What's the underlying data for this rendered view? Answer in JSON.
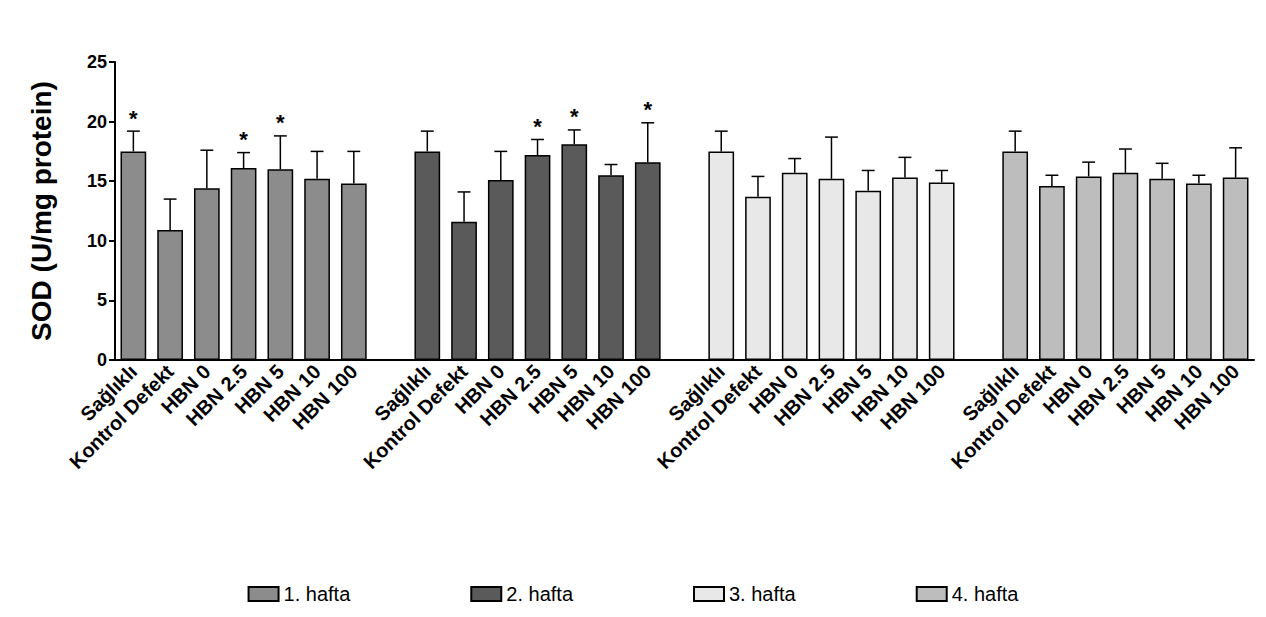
{
  "chart_data": {
    "type": "bar",
    "y_label": "SOD (U/mg protein)",
    "ylim": [
      0,
      25
    ],
    "yticks": [
      0,
      5,
      10,
      15,
      20,
      25
    ],
    "grid": false,
    "legend": "bottom",
    "categories": [
      "Sağlıklı",
      "Kontrol Defekt",
      "HBN 0",
      "HBN 2.5",
      "HBN 5",
      "HBN 10",
      "HBN 100",
      null,
      "Sağlıklı",
      "Kontrol Defekt",
      "HBN 0",
      "HBN 2.5",
      "HBN 5",
      "HBN 10",
      "HBN 100",
      null,
      "Sağlıklı",
      "Kontrol Defekt",
      "HBN 0",
      "HBN 2.5",
      "HBN 5",
      "HBN 10",
      "HBN 100",
      null,
      "Sağlıklı",
      "Kontrol Defekt",
      "HBN 0",
      "HBN 2.5",
      "HBN 5",
      "HBN 10",
      "HBN 100"
    ],
    "series": [
      {
        "name": "1. hafta",
        "color": "#8c8c8c",
        "values": [
          17.5,
          10.9,
          14.4,
          16.1,
          16.0,
          15.2,
          14.8,
          null,
          null,
          null,
          null,
          null,
          null,
          null,
          null,
          null,
          null,
          null,
          null,
          null,
          null,
          null,
          null,
          null,
          null,
          null,
          null,
          null,
          null,
          null,
          null
        ],
        "errors": [
          1.7,
          2.6,
          3.2,
          1.3,
          2.8,
          2.3,
          2.7,
          null,
          null,
          null,
          null,
          null,
          null,
          null,
          null,
          null,
          null,
          null,
          null,
          null,
          null,
          null,
          null,
          null,
          null,
          null,
          null,
          null,
          null,
          null,
          null
        ],
        "annotations": [
          "*",
          null,
          null,
          "*",
          "*",
          null,
          null,
          null,
          null,
          null,
          null,
          null,
          null,
          null,
          null,
          null,
          null,
          null,
          null,
          null,
          null,
          null,
          null,
          null,
          null,
          null,
          null,
          null,
          null,
          null,
          null
        ]
      },
      {
        "name": "2. hafta",
        "color": "#5a5a5a",
        "values": [
          null,
          null,
          null,
          null,
          null,
          null,
          null,
          null,
          17.5,
          11.6,
          15.1,
          17.2,
          18.1,
          15.5,
          16.6,
          null,
          null,
          null,
          null,
          null,
          null,
          null,
          null,
          null,
          null,
          null,
          null,
          null,
          null,
          null,
          null
        ],
        "errors": [
          null,
          null,
          null,
          null,
          null,
          null,
          null,
          null,
          1.7,
          2.5,
          2.4,
          1.3,
          1.2,
          0.9,
          3.3,
          null,
          null,
          null,
          null,
          null,
          null,
          null,
          null,
          null,
          null,
          null,
          null,
          null,
          null,
          null,
          null
        ],
        "annotations": [
          null,
          null,
          null,
          null,
          null,
          null,
          null,
          null,
          null,
          null,
          null,
          "*",
          "*",
          null,
          "*",
          null,
          null,
          null,
          null,
          null,
          null,
          null,
          null,
          null,
          null,
          null,
          null,
          null,
          null,
          null,
          null
        ]
      },
      {
        "name": "3. hafta",
        "color": "#e8e8e8",
        "values": [
          null,
          null,
          null,
          null,
          null,
          null,
          null,
          null,
          null,
          null,
          null,
          null,
          null,
          null,
          null,
          null,
          17.5,
          13.7,
          15.7,
          15.2,
          14.2,
          15.3,
          14.9,
          null,
          null,
          null,
          null,
          null,
          null,
          null,
          null
        ],
        "errors": [
          null,
          null,
          null,
          null,
          null,
          null,
          null,
          null,
          null,
          null,
          null,
          null,
          null,
          null,
          null,
          null,
          1.7,
          1.7,
          1.2,
          3.5,
          1.7,
          1.7,
          1.0,
          null,
          null,
          null,
          null,
          null,
          null,
          null,
          null
        ]
      },
      {
        "name": "4. hafta",
        "color": "#bdbdbd",
        "values": [
          null,
          null,
          null,
          null,
          null,
          null,
          null,
          null,
          null,
          null,
          null,
          null,
          null,
          null,
          null,
          null,
          null,
          null,
          null,
          null,
          null,
          null,
          null,
          null,
          17.5,
          14.6,
          15.4,
          15.7,
          15.2,
          14.8,
          15.3
        ],
        "errors": [
          null,
          null,
          null,
          null,
          null,
          null,
          null,
          null,
          null,
          null,
          null,
          null,
          null,
          null,
          null,
          null,
          null,
          null,
          null,
          null,
          null,
          null,
          null,
          null,
          1.7,
          0.9,
          1.2,
          2.0,
          1.3,
          0.7,
          2.5
        ]
      }
    ]
  }
}
